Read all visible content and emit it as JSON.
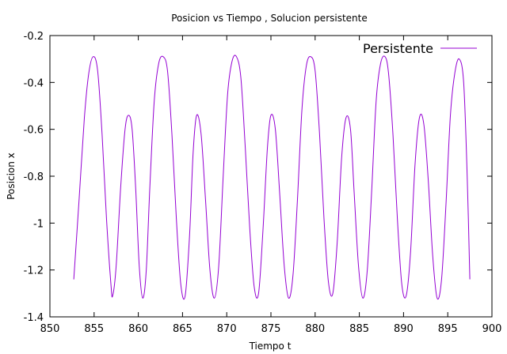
{
  "chart_data": {
    "type": "line",
    "title": "Posicion vs Tiempo , Solucion persistente",
    "xlabel": "Tiempo t",
    "ylabel": "Posicion x",
    "xlim": [
      850,
      900
    ],
    "ylim": [
      -1.4,
      -0.2
    ],
    "xticks": [
      850,
      855,
      860,
      865,
      870,
      875,
      880,
      885,
      890,
      895,
      900
    ],
    "xtick_labels": [
      "850",
      "855",
      "860",
      "865",
      "870",
      "875",
      "880",
      "885",
      "890",
      "895",
      "900"
    ],
    "yticks": [
      -0.2,
      -0.4,
      -0.6,
      -0.8,
      -1.0,
      -1.2,
      -1.4
    ],
    "ytick_labels": [
      "-0.2",
      "-0.4",
      "-0.6",
      "-0.8",
      "-1",
      "-1.2",
      "-1.4"
    ],
    "grid": false,
    "legend_position": "top-right",
    "series": [
      {
        "name": "Persistente",
        "color": "#9400d3",
        "x": [
          852.7,
          853.3,
          853.9,
          854.4,
          854.9,
          855.4,
          855.9,
          856.4,
          856.9,
          857.1,
          857.5,
          858.0,
          858.5,
          858.9,
          859.3,
          859.7,
          860.1,
          860.5,
          860.9,
          861.3,
          861.8,
          862.3,
          862.8,
          863.3,
          863.8,
          864.3,
          864.8,
          865.3,
          865.8,
          866.2,
          866.6,
          867.1,
          867.6,
          868.1,
          868.6,
          869.1,
          869.6,
          870.1,
          870.6,
          871.1,
          871.6,
          872.1,
          872.6,
          873.1,
          873.6,
          874.1,
          874.6,
          875.0,
          875.5,
          876.0,
          876.5,
          877.0,
          877.5,
          878.0,
          878.5,
          879.0,
          879.5,
          880.0,
          880.5,
          881.0,
          881.5,
          882.0,
          882.5,
          883.0,
          883.5,
          884.0,
          884.4,
          884.9,
          885.4,
          885.9,
          886.4,
          886.9,
          887.4,
          887.9,
          888.3,
          888.8,
          889.3,
          889.8,
          890.3,
          890.8,
          891.3,
          891.8,
          892.3,
          892.8,
          893.3,
          893.8,
          894.3,
          894.8,
          895.3,
          895.8,
          896.3,
          896.8,
          897.2,
          897.5
        ],
        "y": [
          -1.24,
          -0.9,
          -0.55,
          -0.36,
          -0.29,
          -0.35,
          -0.62,
          -0.98,
          -1.26,
          -1.31,
          -1.18,
          -0.85,
          -0.6,
          -0.54,
          -0.6,
          -0.85,
          -1.18,
          -1.32,
          -1.2,
          -0.85,
          -0.48,
          -0.32,
          -0.29,
          -0.35,
          -0.62,
          -0.98,
          -1.26,
          -1.31,
          -1.05,
          -0.7,
          -0.54,
          -0.62,
          -0.9,
          -1.2,
          -1.32,
          -1.18,
          -0.8,
          -0.45,
          -0.31,
          -0.29,
          -0.38,
          -0.68,
          -1.02,
          -1.27,
          -1.3,
          -1.03,
          -0.68,
          -0.54,
          -0.6,
          -0.88,
          -1.18,
          -1.32,
          -1.22,
          -0.9,
          -0.52,
          -0.33,
          -0.29,
          -0.35,
          -0.62,
          -0.98,
          -1.25,
          -1.3,
          -1.08,
          -0.72,
          -0.55,
          -0.6,
          -0.86,
          -1.18,
          -1.32,
          -1.2,
          -0.86,
          -0.48,
          -0.32,
          -0.29,
          -0.36,
          -0.62,
          -0.98,
          -1.26,
          -1.31,
          -1.12,
          -0.75,
          -0.55,
          -0.58,
          -0.82,
          -1.14,
          -1.32,
          -1.24,
          -0.92,
          -0.54,
          -0.36,
          -0.3,
          -0.4,
          -0.8,
          -1.24
        ]
      }
    ]
  }
}
